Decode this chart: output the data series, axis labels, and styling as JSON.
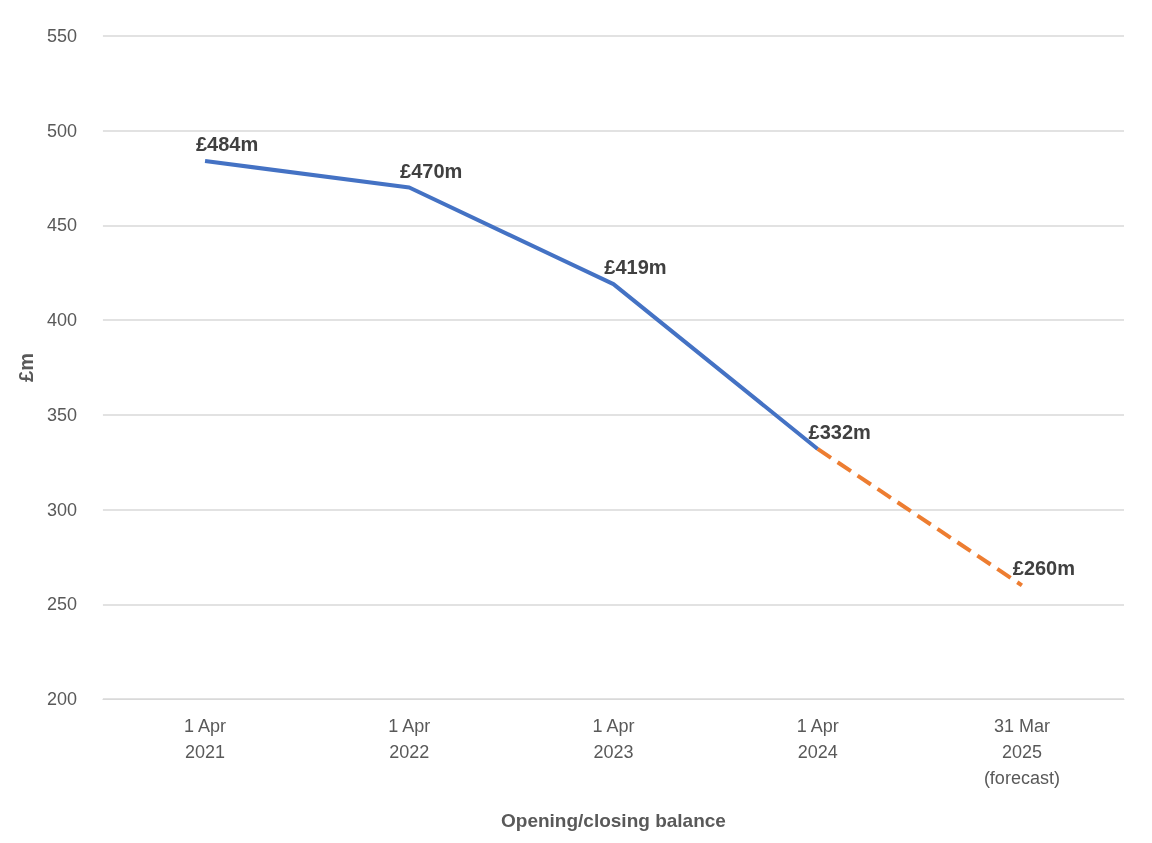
{
  "chart_data": {
    "type": "line",
    "xlabel": "Opening/closing balance",
    "ylabel": "£m",
    "categories": [
      "1 Apr\n2021",
      "1 Apr\n2022",
      "1 Apr\n2023",
      "1 Apr\n2024",
      "31 Mar\n2025\n(forecast)"
    ],
    "series": [
      {
        "color": "#4472c4",
        "line_style": "solid",
        "values": [
          484,
          470,
          419,
          332,
          null
        ],
        "value_labels": [
          "£484m",
          "£470m",
          "£419m",
          "£332m",
          null
        ]
      },
      {
        "color": "#ed7d31",
        "line_style": "dashed",
        "values": [
          null,
          null,
          null,
          332,
          260
        ],
        "value_labels": [
          null,
          null,
          null,
          null,
          "£260m"
        ]
      }
    ],
    "ylim": [
      200,
      550
    ],
    "yticks": [
      200,
      250,
      300,
      350,
      400,
      450,
      500,
      550
    ],
    "grid": "y",
    "marker": "none"
  }
}
